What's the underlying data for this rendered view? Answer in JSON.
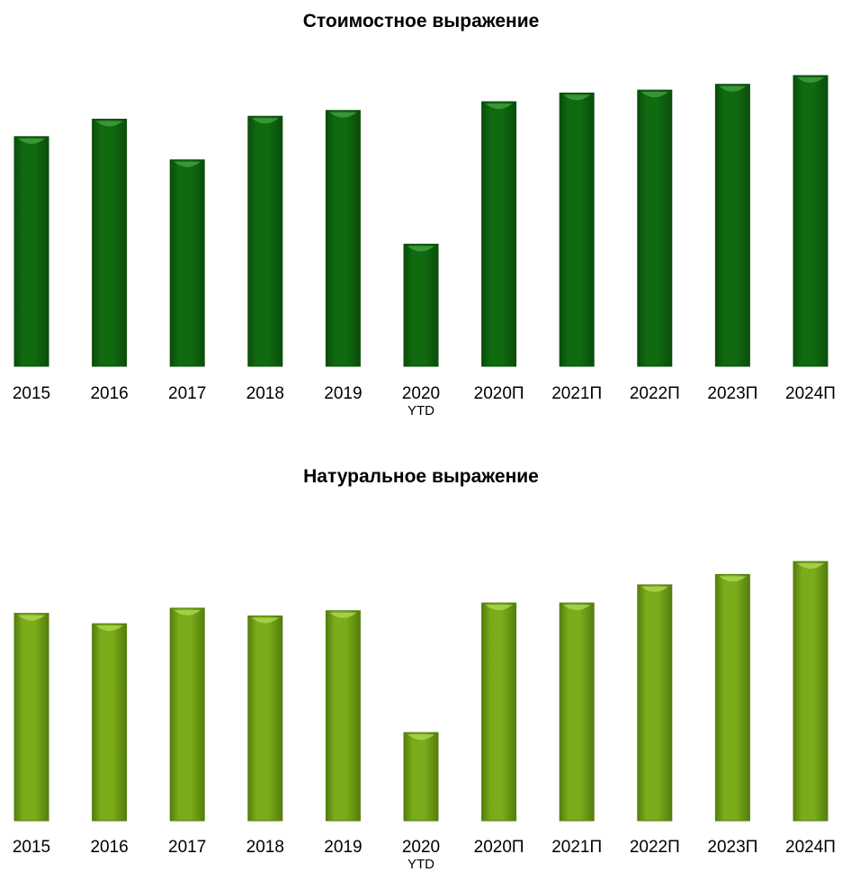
{
  "chart_data": [
    {
      "type": "bar",
      "title": "Стоимостное выражение",
      "categories": [
        "2015",
        "2016",
        "2017",
        "2018",
        "2019",
        "2020\nYTD",
        "2020П",
        "2021П",
        "2022П",
        "2023П",
        "2024П"
      ],
      "values": [
        79,
        85,
        71,
        86,
        88,
        42,
        91,
        94,
        95,
        97,
        100
      ],
      "ylim": [
        0,
        100
      ],
      "grid": false,
      "legend": "none",
      "colors": {
        "fill": "#0f6a10",
        "dark": "#0b4d0b",
        "light": "#3f9a3a"
      }
    },
    {
      "type": "bar",
      "title": "Натуральное выражение",
      "categories": [
        "2015",
        "2016",
        "2017",
        "2018",
        "2019",
        "2020\nYTD",
        "2020П",
        "2021П",
        "2022П",
        "2023П",
        "2024П"
      ],
      "values": [
        80,
        76,
        82,
        79,
        81,
        34,
        84,
        84,
        91,
        95,
        100
      ],
      "ylim": [
        0,
        100
      ],
      "grid": false,
      "legend": "none",
      "colors": {
        "fill": "#7aab1a",
        "dark": "#557e0c",
        "light": "#a9d24a"
      }
    }
  ]
}
